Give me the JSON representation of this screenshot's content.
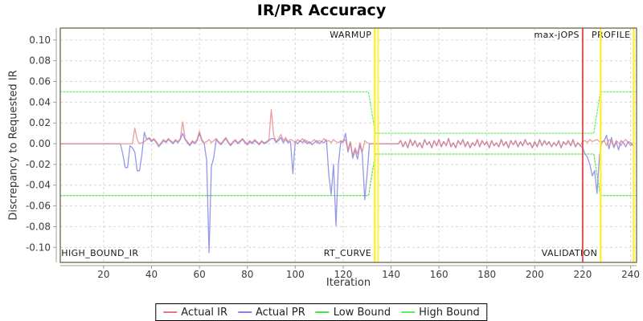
{
  "chart_data": {
    "type": "line",
    "title": "IR/PR Accuracy",
    "xlabel": "Iteration",
    "ylabel": "Discrepancy to Requested IR",
    "xlim": [
      1.9,
      242.5
    ],
    "ylim": [
      -0.1145,
      0.1115
    ],
    "grid": true,
    "legend_position": "bottom",
    "x_ticks": [
      20,
      40,
      60,
      80,
      100,
      120,
      140,
      160,
      180,
      200,
      220,
      240
    ],
    "y_ticks": [
      0.1,
      0.08,
      0.06,
      0.04,
      0.02,
      0.0,
      -0.02,
      -0.04,
      -0.06,
      -0.08,
      -0.1
    ],
    "y_tick_labels": [
      "0.10",
      "0.08",
      "0.06",
      "0.04",
      "0.02",
      "0.00",
      "-0.02",
      "-0.04",
      "-0.06",
      "-0.08",
      "-0.10"
    ],
    "x_start": 1,
    "series": [
      {
        "name": "Actual IR",
        "color": "#e87b7b",
        "opacity": 0.75,
        "width": 1.3,
        "values": [
          0,
          0,
          0,
          0,
          0,
          0,
          0,
          0,
          0,
          0,
          0,
          0,
          0,
          0,
          0,
          0,
          0,
          0,
          0,
          0,
          0,
          0,
          0,
          0,
          0,
          0,
          0,
          0,
          0,
          0,
          0,
          0,
          0.015,
          0.004,
          0,
          0.001,
          0.002,
          0.004,
          0.006,
          0.003,
          0.005,
          0.002,
          -0.002,
          0.001,
          0.004,
          0.002,
          0.005,
          0.003,
          0.001,
          0.004,
          0.002,
          0.005,
          0.021,
          0.005,
          0.002,
          -0.001,
          0.003,
          0.001,
          0.004,
          0.012,
          0.004,
          0.001,
          0.002,
          0.004,
          0.001,
          0.003,
          0.005,
          0.002,
          0,
          0.003,
          0.006,
          0.002,
          -0.001,
          0.002,
          0.004,
          0.001,
          0.003,
          0.005,
          0.002,
          0,
          0.003,
          0.001,
          0.004,
          0.002,
          0,
          0.003,
          0.001,
          0.002,
          0.004,
          0.033,
          0.008,
          0.002,
          0.005,
          0.009,
          0.003,
          0.006,
          0.002,
          0.004,
          0.003,
          0.001,
          0.004,
          0.002,
          0.005,
          0.001,
          0.003,
          0,
          0.002,
          0.004,
          0.001,
          0.003,
          0.002,
          0.005,
          0.002,
          0.003,
          0.001,
          0.004,
          0.002,
          0.001,
          0.003,
          0.002,
          0.004,
          -0.006,
          0.002,
          -0.012,
          -0.004,
          -0.01,
          0.001,
          -0.008,
          0.003,
          0.001,
          0,
          0,
          0,
          0,
          0,
          0,
          0,
          0,
          0,
          0,
          0,
          0,
          0,
          0.003,
          -0.003,
          0.002,
          -0.004,
          0.004,
          -0.002,
          0.003,
          -0.003,
          0.001,
          -0.004,
          0.004,
          -0.001,
          0.002,
          -0.004,
          0.003,
          -0.002,
          0.004,
          -0.003,
          0.002,
          -0.002,
          0.005,
          -0.003,
          0.001,
          -0.004,
          0.003,
          -0.001,
          0.004,
          -0.003,
          0.002,
          -0.004,
          0.001,
          -0.002,
          0.004,
          -0.003,
          0.003,
          -0.001,
          0.002,
          -0.004,
          0.003,
          -0.002,
          0.001,
          -0.003,
          0.004,
          -0.002,
          0.002,
          -0.004,
          0.003,
          -0.001,
          0.003,
          -0.003,
          0.002,
          -0.002,
          0.004,
          -0.001,
          0.001,
          -0.004,
          0.002,
          -0.003,
          0.004,
          -0.002,
          0.003,
          -0.001,
          0.002,
          -0.003,
          0.001,
          -0.002,
          0.003,
          -0.004,
          0.002,
          -0.001,
          0.003,
          -0.002,
          0.004,
          -0.003,
          0.001,
          -0.002,
          0.002,
          0.003,
          0.001,
          0.004,
          0.002,
          0.003,
          0.004,
          0.002,
          0.001,
          0.003,
          -0.002,
          0.004,
          0.002,
          -0.003,
          0.003,
          0.001,
          -0.002,
          0.002,
          0.004,
          0.001,
          -0.002,
          0.001
        ]
      },
      {
        "name": "Actual PR",
        "color": "#8484e8",
        "opacity": 0.85,
        "width": 1.3,
        "values": [
          0,
          0,
          0,
          0,
          0,
          0,
          0,
          0,
          0,
          0,
          0,
          0,
          0,
          0,
          0,
          0,
          0,
          0,
          0,
          0,
          0,
          0,
          0,
          0,
          0,
          0,
          0,
          -0.01,
          -0.023,
          -0.023,
          -0.002,
          -0.004,
          -0.008,
          -0.026,
          -0.026,
          -0.01,
          0.011,
          0.004,
          0.005,
          0.002,
          0.004,
          0.001,
          -0.003,
          0,
          0.003,
          0.001,
          0.004,
          0.002,
          0,
          0.003,
          0.001,
          0.004,
          0.01,
          0.004,
          0.001,
          -0.002,
          0.002,
          0,
          0.003,
          0.01,
          0.003,
          0,
          -0.016,
          -0.105,
          -0.022,
          -0.013,
          0.004,
          0.001,
          -0.001,
          0.002,
          0.005,
          0.001,
          -0.002,
          0.001,
          0.003,
          0,
          0.002,
          0.004,
          0.001,
          -0.001,
          0.002,
          0,
          0.003,
          0.001,
          -0.001,
          0.002,
          0,
          0.001,
          0.003,
          0.005,
          0.005,
          0.001,
          0.003,
          0.006,
          0.001,
          0.004,
          0.001,
          0.002,
          -0.029,
          0.002,
          0,
          0.003,
          0.001,
          0.004,
          0,
          0.002,
          -0.001,
          0.001,
          0.003,
          0,
          0.002,
          0.001,
          0.004,
          -0.03,
          -0.049,
          -0.02,
          -0.079,
          -0.02,
          0.002,
          0.001,
          0.01,
          -0.008,
          0.001,
          -0.014,
          -0.006,
          -0.015,
          -0.001,
          -0.01,
          -0.054,
          -0.03,
          0,
          0,
          0,
          0,
          0,
          0,
          0,
          0,
          0,
          0,
          0,
          0,
          0,
          0.003,
          -0.003,
          0.002,
          -0.004,
          0.004,
          -0.002,
          0.003,
          -0.003,
          0.001,
          -0.004,
          0.004,
          -0.001,
          0.002,
          -0.004,
          0.003,
          -0.002,
          0.004,
          -0.003,
          0.002,
          -0.002,
          0.005,
          -0.003,
          0.001,
          -0.004,
          0.003,
          -0.001,
          0.004,
          -0.003,
          0.002,
          -0.004,
          0.001,
          -0.002,
          0.004,
          -0.003,
          0.003,
          -0.001,
          0.002,
          -0.004,
          0.003,
          -0.002,
          0.001,
          -0.003,
          0.004,
          -0.002,
          0.002,
          -0.004,
          0.003,
          -0.001,
          0.003,
          -0.003,
          0.002,
          -0.002,
          0.004,
          -0.001,
          0.001,
          -0.004,
          0.002,
          -0.003,
          0.004,
          -0.002,
          0.003,
          -0.001,
          0.002,
          -0.003,
          0.001,
          -0.002,
          0.003,
          -0.004,
          0.002,
          -0.001,
          0.003,
          -0.002,
          0.004,
          -0.003,
          0.001,
          -0.002,
          -0.004,
          -0.01,
          -0.013,
          -0.02,
          -0.031,
          -0.026,
          -0.048,
          -0.012,
          0.002,
          0.003,
          0.008,
          -0.005,
          0.006,
          -0.004,
          0.002,
          -0.006,
          0.003,
          0.001,
          -0.003,
          0.002,
          0.001,
          -0.002
        ]
      },
      {
        "name": "Low Bound",
        "color": "#50e050",
        "opacity": 0.9,
        "width": 1.3,
        "dash": "2 2",
        "points": [
          [
            1.9,
            -0.05
          ],
          [
            130.6,
            -0.05
          ],
          [
            133.4,
            -0.01
          ],
          [
            224.6,
            -0.01
          ],
          [
            227.4,
            -0.05
          ],
          [
            242.5,
            -0.05
          ]
        ]
      },
      {
        "name": "High Bound",
        "color": "#5cef5c",
        "opacity": 0.9,
        "width": 1.3,
        "dash": "2 2",
        "points": [
          [
            1.9,
            0.05
          ],
          [
            130.6,
            0.05
          ],
          [
            133.4,
            0.01
          ],
          [
            224.6,
            0.01
          ],
          [
            227.4,
            0.05
          ],
          [
            242.5,
            0.05
          ]
        ]
      }
    ],
    "markers": [
      {
        "x": 133.2,
        "color": "#ffee22",
        "width": 2.5,
        "name": "warmup-marker-line"
      },
      {
        "x": 134.6,
        "color": "#ffee22",
        "width": 2.0,
        "name": "rt-curve-marker-line"
      },
      {
        "x": 220.0,
        "color": "#e04545",
        "width": 2.0,
        "name": "max-jops-marker-line"
      },
      {
        "x": 227.5,
        "color": "#ffee22",
        "width": 2.5,
        "name": "profile-marker-line"
      },
      {
        "x": 241.3,
        "color": "#ffee22",
        "width": 2.5,
        "name": "end-marker-line"
      }
    ],
    "annotations": [
      {
        "text": "WARMUP",
        "x": 133.2,
        "row": "top",
        "align": "end",
        "name": "warmup-label"
      },
      {
        "text": "max-jOPS",
        "x": 220.0,
        "row": "top",
        "align": "end",
        "name": "max-jops-label"
      },
      {
        "text": "PROFILE",
        "x": 241.3,
        "row": "top",
        "align": "end",
        "name": "profile-label"
      },
      {
        "text": "HIGH_BOUND_IR",
        "x": 2.0,
        "row": "bottom",
        "align": "start",
        "name": "high-bound-ir-label"
      },
      {
        "text": "RT_CURVE",
        "x": 133.2,
        "row": "bottom",
        "align": "end",
        "name": "rt-curve-label"
      },
      {
        "text": "VALIDATION",
        "x": 227.5,
        "row": "bottom",
        "align": "end",
        "name": "validation-label"
      }
    ]
  }
}
